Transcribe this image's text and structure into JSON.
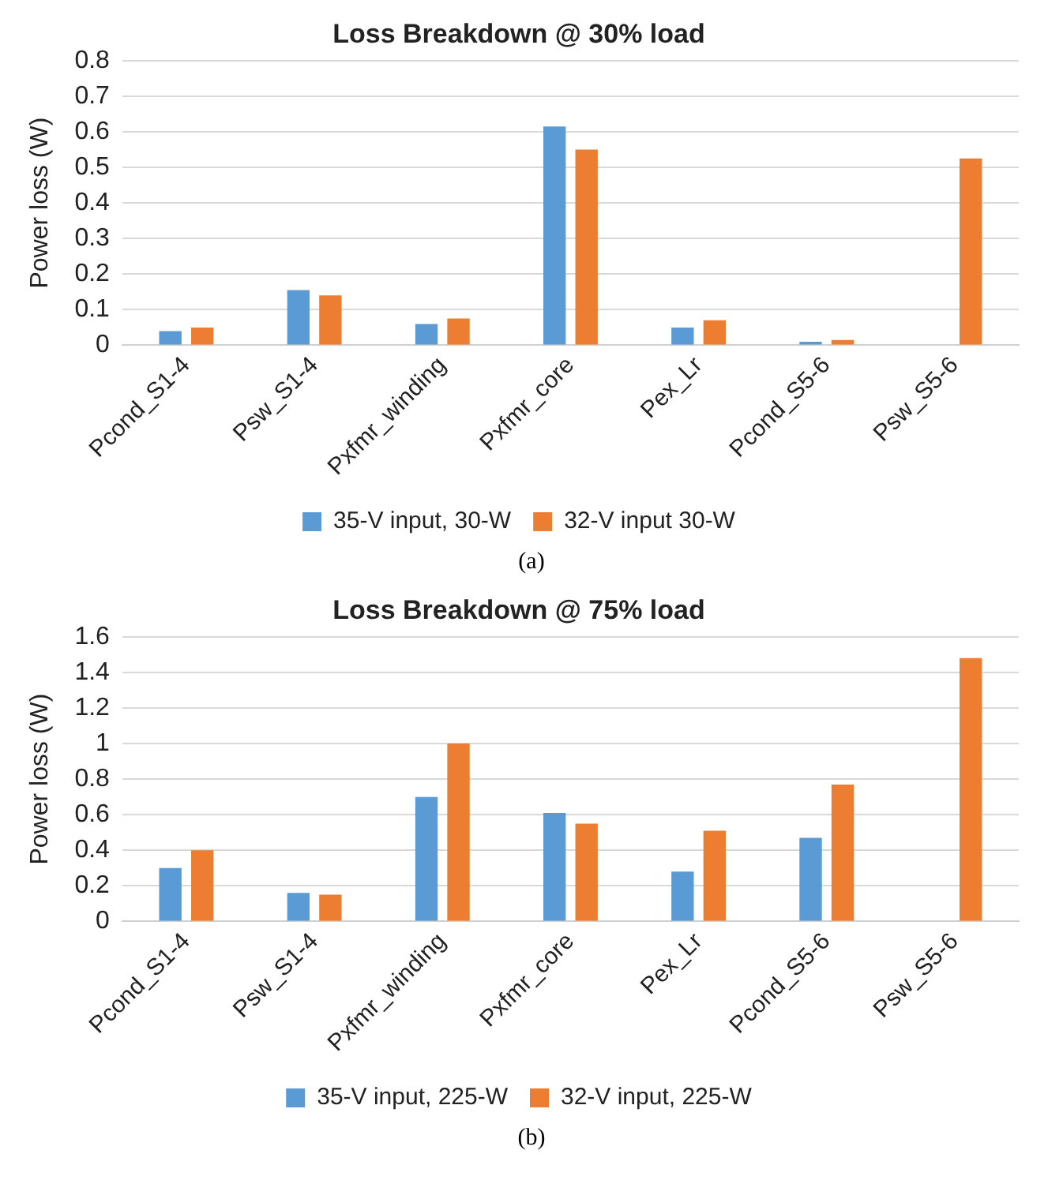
{
  "chart_data": [
    {
      "type": "bar",
      "title": "Loss Breakdown @ 30% load",
      "ylabel": "Power loss (W)",
      "categories": [
        "Pcond_S1-4",
        "Psw_S1-4",
        "Pxfmr_winding",
        "Pxfmr_core",
        "Pex_Lr",
        "Pcond_S5-6",
        "Psw_S5-6"
      ],
      "series": [
        {
          "name": "35-V input, 30-W",
          "color": "#5b9bd5",
          "values": [
            0.04,
            0.155,
            0.06,
            0.615,
            0.05,
            0.01,
            null
          ]
        },
        {
          "name": "32-V input 30-W",
          "color": "#ed7d31",
          "values": [
            0.05,
            0.14,
            0.075,
            0.55,
            0.07,
            0.015,
            0.525
          ]
        }
      ],
      "ylim": [
        0,
        0.8
      ],
      "yticks": [
        0,
        0.1,
        0.2,
        0.3,
        0.4,
        0.5,
        0.6,
        0.7,
        0.8
      ],
      "grid": "y",
      "legend": "bottom",
      "annotations": [
        "(a)"
      ]
    },
    {
      "type": "bar",
      "title": "Loss Breakdown @ 75% load",
      "ylabel": "Power loss (W)",
      "categories": [
        "Pcond_S1-4",
        "Psw_S1-4",
        "Pxfmr_winding",
        "Pxfmr_core",
        "Pex_Lr",
        "Pcond_S5-6",
        "Psw_S5-6"
      ],
      "series": [
        {
          "name": "35-V input, 225-W",
          "color": "#5b9bd5",
          "values": [
            0.3,
            0.16,
            0.7,
            0.61,
            0.28,
            0.47,
            null
          ]
        },
        {
          "name": "32-V input, 225-W",
          "color": "#ed7d31",
          "values": [
            0.4,
            0.15,
            1.0,
            0.55,
            0.51,
            0.77,
            1.48
          ]
        }
      ],
      "ylim": [
        0,
        1.6
      ],
      "yticks": [
        0,
        0.2,
        0.4,
        0.6,
        0.8,
        1,
        1.2,
        1.4,
        1.6
      ],
      "grid": "y",
      "legend": "bottom",
      "annotations": [
        "(b)"
      ]
    }
  ]
}
